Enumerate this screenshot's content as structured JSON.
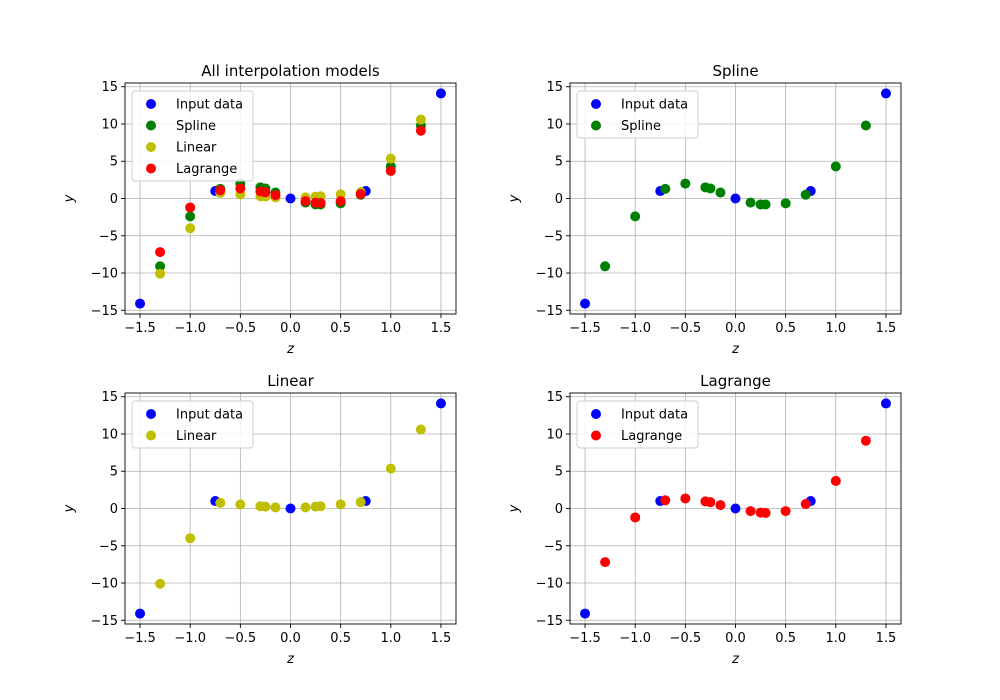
{
  "chart_data": [
    {
      "type": "scatter",
      "title": "All interpolation models",
      "xlabel": "z",
      "ylabel": "y",
      "xlim": [
        -1.65,
        1.65
      ],
      "ylim": [
        -15.5,
        15.5
      ],
      "xticks": [
        -1.5,
        -1.0,
        -0.5,
        0.0,
        0.5,
        1.0,
        1.5
      ],
      "xtick_labels": [
        "−1.5",
        "−1.0",
        "−0.5",
        "0.0",
        "0.5",
        "1.0",
        "1.5"
      ],
      "yticks": [
        -15,
        -10,
        -5,
        0,
        5,
        10,
        15
      ],
      "ytick_labels": [
        "−15",
        "−10",
        "−5",
        "0",
        "5",
        "10",
        "15"
      ],
      "grid": true,
      "legend_position": "top-left",
      "series": [
        {
          "name": "Input data",
          "color": "#0000ff",
          "points": [
            [
              -1.5,
              -14.1
            ],
            [
              -0.75,
              1.0
            ],
            [
              0.0,
              0.0
            ],
            [
              0.75,
              1.0
            ],
            [
              1.5,
              14.1
            ]
          ]
        },
        {
          "name": "Spline",
          "color": "#008000",
          "points": [
            [
              -1.3,
              -9.1
            ],
            [
              -1.0,
              -2.4
            ],
            [
              -0.7,
              1.3
            ],
            [
              -0.5,
              2.0
            ],
            [
              -0.3,
              1.5
            ],
            [
              -0.25,
              1.35
            ],
            [
              -0.15,
              0.8
            ],
            [
              0.15,
              -0.55
            ],
            [
              0.25,
              -0.8
            ],
            [
              0.3,
              -0.8
            ],
            [
              0.5,
              -0.65
            ],
            [
              0.7,
              0.5
            ],
            [
              1.0,
              4.3
            ],
            [
              1.3,
              9.8
            ]
          ]
        },
        {
          "name": "Linear",
          "color": "#bfbf00",
          "points": [
            [
              -1.3,
              -10.1
            ],
            [
              -1.0,
              -4.0
            ],
            [
              -0.7,
              0.75
            ],
            [
              -0.5,
              0.55
            ],
            [
              -0.3,
              0.3
            ],
            [
              -0.25,
              0.25
            ],
            [
              -0.15,
              0.15
            ],
            [
              0.15,
              0.15
            ],
            [
              0.25,
              0.25
            ],
            [
              0.3,
              0.3
            ],
            [
              0.5,
              0.55
            ],
            [
              0.7,
              0.85
            ],
            [
              1.0,
              5.35
            ],
            [
              1.3,
              10.6
            ]
          ]
        },
        {
          "name": "Lagrange",
          "color": "#ff0000",
          "points": [
            [
              -1.3,
              -7.2
            ],
            [
              -1.0,
              -1.2
            ],
            [
              -0.7,
              1.1
            ],
            [
              -0.5,
              1.35
            ],
            [
              -0.3,
              0.95
            ],
            [
              -0.25,
              0.85
            ],
            [
              -0.15,
              0.45
            ],
            [
              0.15,
              -0.35
            ],
            [
              0.25,
              -0.55
            ],
            [
              0.3,
              -0.6
            ],
            [
              0.5,
              -0.35
            ],
            [
              0.7,
              0.6
            ],
            [
              1.0,
              3.7
            ],
            [
              1.3,
              9.1
            ]
          ]
        }
      ]
    },
    {
      "type": "scatter",
      "title": "Spline",
      "xlabel": "z",
      "ylabel": "y",
      "xlim": [
        -1.65,
        1.65
      ],
      "ylim": [
        -15.5,
        15.5
      ],
      "xticks": [
        -1.5,
        -1.0,
        -0.5,
        0.0,
        0.5,
        1.0,
        1.5
      ],
      "xtick_labels": [
        "−1.5",
        "−1.0",
        "−0.5",
        "0.0",
        "0.5",
        "1.0",
        "1.5"
      ],
      "yticks": [
        -15,
        -10,
        -5,
        0,
        5,
        10,
        15
      ],
      "ytick_labels": [
        "−15",
        "−10",
        "−5",
        "0",
        "5",
        "10",
        "15"
      ],
      "grid": true,
      "legend_position": "top-left",
      "series": [
        {
          "name": "Input data",
          "color": "#0000ff",
          "points": [
            [
              -1.5,
              -14.1
            ],
            [
              -0.75,
              1.0
            ],
            [
              0.0,
              0.0
            ],
            [
              0.75,
              1.0
            ],
            [
              1.5,
              14.1
            ]
          ]
        },
        {
          "name": "Spline",
          "color": "#008000",
          "points": [
            [
              -1.3,
              -9.1
            ],
            [
              -1.0,
              -2.4
            ],
            [
              -0.7,
              1.3
            ],
            [
              -0.5,
              2.0
            ],
            [
              -0.3,
              1.5
            ],
            [
              -0.25,
              1.35
            ],
            [
              -0.15,
              0.8
            ],
            [
              0.15,
              -0.55
            ],
            [
              0.25,
              -0.8
            ],
            [
              0.3,
              -0.8
            ],
            [
              0.5,
              -0.65
            ],
            [
              0.7,
              0.5
            ],
            [
              1.0,
              4.3
            ],
            [
              1.3,
              9.8
            ]
          ]
        }
      ]
    },
    {
      "type": "scatter",
      "title": "Linear",
      "xlabel": "z",
      "ylabel": "y",
      "xlim": [
        -1.65,
        1.65
      ],
      "ylim": [
        -15.5,
        15.5
      ],
      "xticks": [
        -1.5,
        -1.0,
        -0.5,
        0.0,
        0.5,
        1.0,
        1.5
      ],
      "xtick_labels": [
        "−1.5",
        "−1.0",
        "−0.5",
        "0.0",
        "0.5",
        "1.0",
        "1.5"
      ],
      "yticks": [
        -15,
        -10,
        -5,
        0,
        5,
        10,
        15
      ],
      "ytick_labels": [
        "−15",
        "−10",
        "−5",
        "0",
        "5",
        "10",
        "15"
      ],
      "grid": true,
      "legend_position": "top-left",
      "series": [
        {
          "name": "Input data",
          "color": "#0000ff",
          "points": [
            [
              -1.5,
              -14.1
            ],
            [
              -0.75,
              1.0
            ],
            [
              0.0,
              0.0
            ],
            [
              0.75,
              1.0
            ],
            [
              1.5,
              14.1
            ]
          ]
        },
        {
          "name": "Linear",
          "color": "#bfbf00",
          "points": [
            [
              -1.3,
              -10.1
            ],
            [
              -1.0,
              -4.0
            ],
            [
              -0.7,
              0.75
            ],
            [
              -0.5,
              0.55
            ],
            [
              -0.3,
              0.3
            ],
            [
              -0.25,
              0.25
            ],
            [
              -0.15,
              0.15
            ],
            [
              0.15,
              0.15
            ],
            [
              0.25,
              0.25
            ],
            [
              0.3,
              0.3
            ],
            [
              0.5,
              0.55
            ],
            [
              0.7,
              0.85
            ],
            [
              1.0,
              5.35
            ],
            [
              1.3,
              10.6
            ]
          ]
        }
      ]
    },
    {
      "type": "scatter",
      "title": "Lagrange",
      "xlabel": "z",
      "ylabel": "y",
      "xlim": [
        -1.65,
        1.65
      ],
      "ylim": [
        -15.5,
        15.5
      ],
      "xticks": [
        -1.5,
        -1.0,
        -0.5,
        0.0,
        0.5,
        1.0,
        1.5
      ],
      "xtick_labels": [
        "−1.5",
        "−1.0",
        "−0.5",
        "0.0",
        "0.5",
        "1.0",
        "1.5"
      ],
      "yticks": [
        -15,
        -10,
        -5,
        0,
        5,
        10,
        15
      ],
      "ytick_labels": [
        "−15",
        "−10",
        "−5",
        "0",
        "5",
        "10",
        "15"
      ],
      "grid": true,
      "legend_position": "top-left",
      "series": [
        {
          "name": "Input data",
          "color": "#0000ff",
          "points": [
            [
              -1.5,
              -14.1
            ],
            [
              -0.75,
              1.0
            ],
            [
              0.0,
              0.0
            ],
            [
              0.75,
              1.0
            ],
            [
              1.5,
              14.1
            ]
          ]
        },
        {
          "name": "Lagrange",
          "color": "#ff0000",
          "points": [
            [
              -1.3,
              -7.2
            ],
            [
              -1.0,
              -1.2
            ],
            [
              -0.7,
              1.1
            ],
            [
              -0.5,
              1.35
            ],
            [
              -0.3,
              0.95
            ],
            [
              -0.25,
              0.85
            ],
            [
              -0.15,
              0.45
            ],
            [
              0.15,
              -0.35
            ],
            [
              0.25,
              -0.55
            ],
            [
              0.3,
              -0.6
            ],
            [
              0.5,
              -0.35
            ],
            [
              0.7,
              0.6
            ],
            [
              1.0,
              3.7
            ],
            [
              1.3,
              9.1
            ]
          ]
        }
      ]
    }
  ]
}
